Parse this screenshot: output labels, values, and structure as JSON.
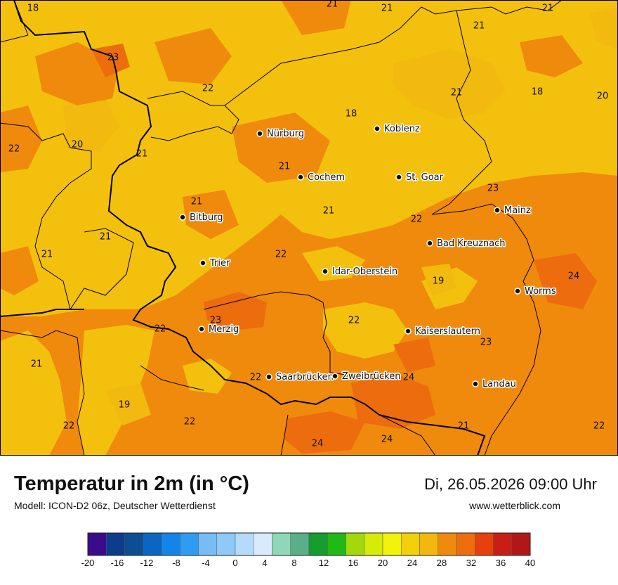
{
  "map": {
    "colors": {
      "t18_20": "#f2b90f",
      "t20_22": "#f3c00e",
      "t22_24": "#f08a0d",
      "t24_26": "#ec6c0e",
      "border": "#000000"
    },
    "cities": [
      {
        "name": "Nürburg"
      },
      {
        "name": "Koblenz"
      },
      {
        "name": "Cochem"
      },
      {
        "name": "St. Goar"
      },
      {
        "name": "Mainz"
      },
      {
        "name": "Bitburg"
      },
      {
        "name": "Bad Kreuznach"
      },
      {
        "name": "Trier"
      },
      {
        "name": "Idar-Oberstein"
      },
      {
        "name": "Worms"
      },
      {
        "name": "Merzig"
      },
      {
        "name": "Kaiserslautern"
      },
      {
        "name": "Saarbrücken"
      },
      {
        "name": "Zweibrücken"
      },
      {
        "name": "Landau"
      }
    ],
    "temperatures": [
      "18",
      "21",
      "21",
      "21",
      "23",
      "21",
      "22",
      "21",
      "18",
      "20",
      "18",
      "22",
      "20",
      "21",
      "21",
      "21",
      "23",
      "21",
      "22",
      "21",
      "21",
      "22",
      "19",
      "24",
      "23",
      "22",
      "22",
      "23",
      "21",
      "22",
      "24",
      "19",
      "22",
      "22",
      "21",
      "22",
      "24",
      "24"
    ]
  },
  "footer": {
    "title": "Temperatur in 2m (in °C)",
    "model": "Modell: ICON-D2 06z, Deutscher Wetterdienst",
    "datetime": "Di, 26.05.2026 09:00 Uhr",
    "website": "www.wetterblick.com"
  },
  "colorbar": {
    "min": -20,
    "max": 40,
    "step": 2.5,
    "ticks": [
      "-20",
      "-16",
      "-12",
      "-8",
      "-4",
      "0",
      "4",
      "8",
      "12",
      "16",
      "20",
      "24",
      "28",
      "32",
      "36",
      "40"
    ],
    "colors": [
      "#3a0c8c",
      "#0b3d8a",
      "#0c4d94",
      "#0a66c2",
      "#1385e8",
      "#2e9cf2",
      "#76bdf5",
      "#8ec9f7",
      "#b5dbfa",
      "#d8eafc",
      "#8ed8b8",
      "#5aae8a",
      "#159d2f",
      "#1fba16",
      "#a3d90c",
      "#d4ec08",
      "#f2f20a",
      "#f2d10a",
      "#f2b80d",
      "#f08a0d",
      "#ee6e0e",
      "#e8400d",
      "#c91e16",
      "#b01818",
      "#800a0a",
      "#8e3a3a",
      "#c57a7a",
      "#f4b3b0",
      "#fde2e2"
    ]
  }
}
